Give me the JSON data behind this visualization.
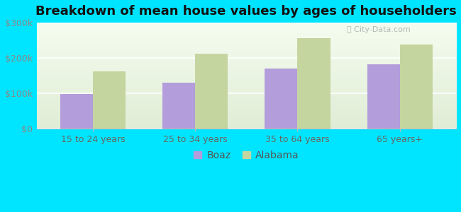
{
  "title": "Breakdown of mean house values by ages of householders",
  "categories": [
    "15 to 24 years",
    "25 to 34 years",
    "35 to 64 years",
    "65 years+"
  ],
  "boaz_values": [
    98000,
    130000,
    170000,
    182000
  ],
  "alabama_values": [
    163000,
    213000,
    257000,
    238000
  ],
  "boaz_color": "#b39ddb",
  "alabama_color": "#c5d5a0",
  "ylim": [
    0,
    300000
  ],
  "yticks": [
    0,
    100000,
    200000,
    300000
  ],
  "ytick_labels": [
    "$0",
    "$100k",
    "$200k",
    "$300k"
  ],
  "background_color": "#00e5ff",
  "title_fontsize": 13,
  "legend_labels": [
    "Boaz",
    "Alabama"
  ],
  "watermark": "City-Data.com",
  "bar_width": 0.32
}
